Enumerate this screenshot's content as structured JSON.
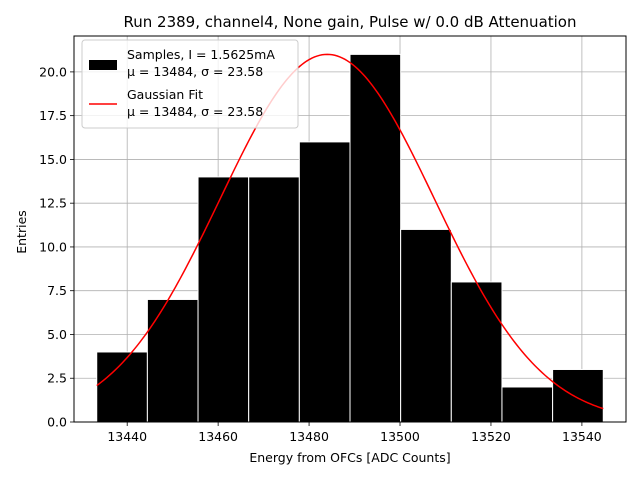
{
  "chart_data": {
    "type": "bar",
    "title": "Run 2389, channel4, None gain, Pulse w/ 0.0 dB Attenuation",
    "xlabel": "Energy from OFCs [ADC Counts]",
    "ylabel": "Entries",
    "xlim": [
      13428.3,
      13549.7
    ],
    "ylim": [
      0,
      22.05
    ],
    "xticks": [
      13440,
      13460,
      13480,
      13500,
      13520,
      13540
    ],
    "yticks": [
      0.0,
      2.5,
      5.0,
      7.5,
      10.0,
      12.5,
      15.0,
      17.5,
      20.0
    ],
    "xtick_labels": [
      "13440",
      "13460",
      "13480",
      "13500",
      "13520",
      "13540"
    ],
    "ytick_labels": [
      "0.0",
      "2.5",
      "5.0",
      "7.5",
      "10.0",
      "12.5",
      "15.0",
      "17.5",
      "20.0"
    ],
    "grid": true,
    "legend_position": "top-left",
    "bin_edges": [
      13433.3,
      13444.44,
      13455.58,
      13466.72,
      13477.86,
      13489.0,
      13500.14,
      13511.28,
      13522.42,
      13533.56,
      13544.7
    ],
    "series": [
      {
        "kind": "histogram",
        "label_line1": "Samples, I = 1.5625mA",
        "label_line2": "μ = 13484, σ = 23.58",
        "color": "#000000",
        "edgecolor": "#ffffff",
        "values": [
          4,
          7,
          14,
          14,
          16,
          21,
          11,
          8,
          2,
          3
        ]
      },
      {
        "kind": "line",
        "label_line1": "Gaussian Fit",
        "label_line2": "μ = 13484, σ = 23.58",
        "color": "#ff0000",
        "mu": 13484,
        "sigma": 23.58,
        "amplitude": 21.0,
        "x_range": [
          13433.3,
          13544.7
        ]
      }
    ]
  }
}
